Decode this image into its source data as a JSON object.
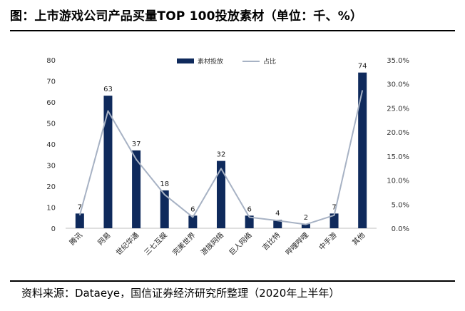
{
  "title": "图：上市游戏公司产品买量TOP 100投放素材（单位：千、%）",
  "source": "资料来源：Dataeye，国信证券经济研究所整理（2020年上半年）",
  "colors": {
    "bar": "#0f2a5c",
    "line": "#a7b2c4"
  },
  "chart_data": {
    "type": "bar",
    "categories": [
      "腾讯",
      "网易",
      "世纪华通",
      "三七互娱",
      "完美世界",
      "游族网络",
      "巨人网络",
      "吉比特",
      "哔哩哔哩",
      "中手游",
      "其他"
    ],
    "series": [
      {
        "name": "素材投放",
        "type": "bar",
        "axis": "left",
        "values": [
          7,
          63,
          37,
          18,
          6,
          32,
          6,
          4,
          2,
          7,
          74
        ]
      },
      {
        "name": "占比",
        "type": "line",
        "axis": "right",
        "values": [
          2.7,
          24.4,
          14.3,
          7.0,
          2.3,
          12.4,
          2.3,
          1.6,
          0.8,
          2.7,
          28.7
        ]
      }
    ],
    "data_labels": [
      "7",
      "63",
      "37",
      "18",
      "6",
      "32",
      "6",
      "4",
      "2",
      "7",
      "74"
    ],
    "ylim": [
      0,
      80
    ],
    "y_ticks": [
      "0",
      "10",
      "20",
      "30",
      "40",
      "50",
      "60",
      "70",
      "80"
    ],
    "y2lim": [
      0,
      35
    ],
    "y2_ticks": [
      "0.0%",
      "5.0%",
      "10.0%",
      "15.0%",
      "20.0%",
      "25.0%",
      "30.0%",
      "35.0%"
    ],
    "legend_position": "top-center",
    "grid": false
  }
}
